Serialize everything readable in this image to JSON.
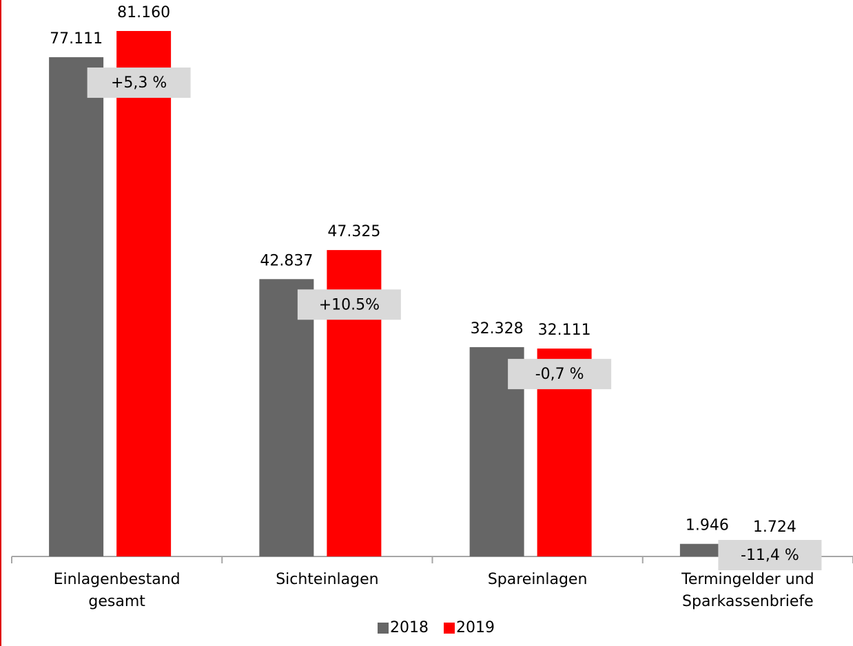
{
  "chart_data": {
    "type": "bar",
    "categories": [
      "Einlagenbestand gesamt",
      "Sichteinlagen",
      "Spareinlagen",
      "Termingelder und Sparkassenbriefe"
    ],
    "series": [
      {
        "name": "2018",
        "color": "#666666",
        "values": [
          77111,
          42837,
          32328,
          1946
        ],
        "value_labels": [
          "77.111",
          "42.837",
          "32.328",
          "1.946"
        ]
      },
      {
        "name": "2019",
        "color": "#ff0000",
        "values": [
          81160,
          47325,
          32111,
          1724
        ],
        "value_labels": [
          "81.160",
          "47.325",
          "32.111",
          "1.724"
        ]
      }
    ],
    "annotations": [
      "+5,3 %",
      "+10.5%",
      "-0,7 %",
      "-11,4 %"
    ],
    "legend": "bottom"
  }
}
